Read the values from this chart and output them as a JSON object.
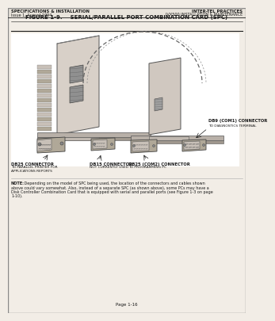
{
  "page_bg": "#f2ede6",
  "diagram_bg": "#ffffff",
  "header_left_line1": "SPECIFICATIONS & INSTALLATION",
  "header_left_line2": "Issue 1, August 1994",
  "header_right_line1": "INTER-TEL PRACTICES",
  "header_right_line2": "IVX500 INSTALLATION & MAINTENANCE",
  "figure_title": "FIGURE 1-9.    SERIAL/PARALLEL PORT COMBINATION CARD (SPC)",
  "label_db25_bold": "DB25 CONNECTOR",
  "label_db25_sub": "TO PARALLEL PRINTER FOR\nAPPLICATIONS REPORTS",
  "label_db15_bold": "DB15 CONNECTOR",
  "label_db15_sub": "NOT CURRENTLY USED",
  "label_db9_bold": "DB9 (COM1) CONNECTOR",
  "label_db9_sub": "TO DIAGNOSTICS TERMINAL",
  "label_db25c2_bold": "DB25 (COM2) CONNECTOR",
  "label_db25c2_sub": "TO PROGRAMMING PC",
  "note_bold": "NOTE:",
  "note_text": " Depending on the model of SPC being used, the location of the connectors and cables shown above could vary somewhat. Also, instead of a separate SPC (as shown above), some PCs may have a Disk Controller Combination Card that is equipped with serial and parallel ports (see Figure 1-3 on page 1-10).",
  "page_number": "Page 1-16",
  "text_color": "#1a1a1a",
  "line_color": "#555555",
  "dark_gray": "#444444",
  "mid_gray": "#888888",
  "light_gray": "#bbbbbb",
  "bracket_color": "#999999",
  "card_color": "#cccccc",
  "connector_color": "#aaaaaa"
}
